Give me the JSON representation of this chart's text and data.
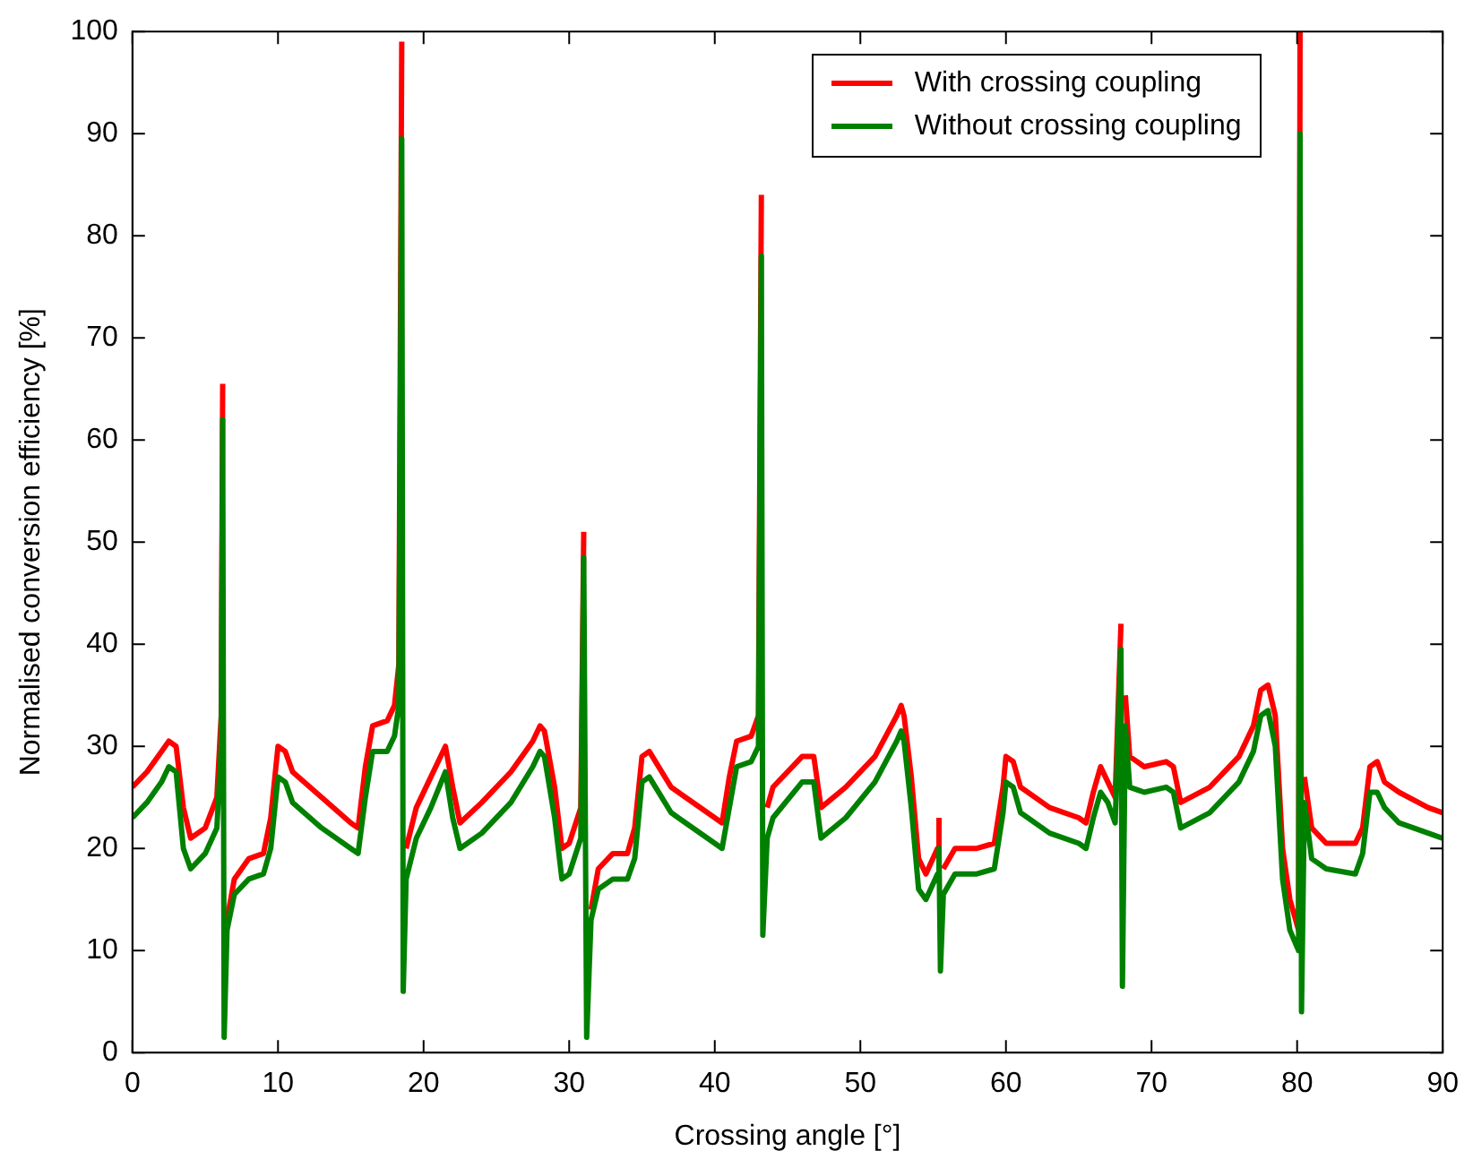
{
  "chart_data": {
    "type": "line",
    "xlabel": "Crossing angle [°]",
    "ylabel": "Normalised conversion efficiency [%]",
    "x": [
      0,
      1,
      2,
      2.5,
      3,
      3.5,
      4,
      5,
      5.8,
      6.1,
      6.2,
      6.3,
      6.5,
      7,
      8,
      9,
      9.5,
      10,
      10.5,
      11,
      13,
      15,
      15.5,
      16,
      16.5,
      17.5,
      18,
      18.3,
      18.5,
      18.6,
      18.8,
      19.5,
      20.5,
      21.5,
      22,
      22.5,
      24,
      26,
      27.5,
      28,
      28.3,
      29,
      29.5,
      30,
      30.8,
      31,
      31.2,
      31.5,
      32,
      33,
      34,
      34.5,
      35,
      35.5,
      37,
      38,
      40,
      40.5,
      41,
      41.5,
      42.5,
      43,
      43.2,
      43.3,
      43.6,
      44,
      46,
      46.8,
      47.3,
      49,
      51,
      52.5,
      52.8,
      53,
      53.5,
      54,
      54.5,
      55.3,
      55.4,
      55.5,
      55.7,
      56.5,
      58,
      59.2,
      59.8,
      60,
      60.5,
      61,
      63,
      65,
      65.5,
      66,
      66.5,
      67,
      67.5,
      67.9,
      68,
      68.2,
      68.5,
      69.5,
      71,
      71.5,
      72,
      74,
      76,
      77,
      77.5,
      78,
      78.5,
      79,
      79.5,
      80.1,
      80.2,
      80.3,
      80.5,
      81,
      82,
      84,
      84.5,
      85,
      85.5,
      86,
      87,
      89,
      90
    ],
    "series": [
      {
        "name": "With crossing coupling",
        "color": "#ff0000",
        "values": [
          26,
          27.5,
          29.5,
          30.5,
          30,
          24,
          21,
          22,
          25,
          33,
          65.5,
          null,
          13,
          17,
          19,
          19.5,
          23,
          30,
          29.5,
          27.5,
          25,
          22.5,
          22,
          28,
          32,
          32.5,
          34,
          38,
          99,
          null,
          20,
          24,
          27,
          30,
          26,
          22.5,
          24.5,
          27.5,
          30.5,
          32,
          31.5,
          26,
          20,
          20.5,
          24,
          51,
          null,
          14,
          18,
          19.5,
          19.5,
          22,
          29,
          29.5,
          26,
          25,
          23,
          22.5,
          27,
          30.5,
          31,
          33,
          84,
          null,
          24,
          26,
          29,
          29,
          24,
          26,
          29,
          33,
          34,
          33,
          27,
          19,
          17.5,
          20,
          23,
          null,
          18,
          20,
          20,
          20.5,
          26,
          29,
          28.5,
          26,
          24,
          23,
          22.5,
          25.5,
          28,
          26.5,
          25,
          42,
          null,
          35,
          29,
          28,
          28.5,
          28,
          24.5,
          26,
          29,
          32,
          35.5,
          36,
          33,
          20,
          15,
          12,
          100,
          null,
          27,
          22,
          20.5,
          20.5,
          22,
          28,
          28.5,
          26.5,
          25.5,
          24,
          23.5
        ]
      },
      {
        "name": "Without crossing coupling",
        "color": "#008000",
        "values": [
          23,
          24.5,
          26.5,
          28,
          27.5,
          20,
          18,
          19.5,
          22,
          30,
          62,
          1.5,
          12,
          15.5,
          17,
          17.5,
          20,
          27,
          26.5,
          24.5,
          22,
          20,
          19.5,
          25,
          29.5,
          29.5,
          31,
          34,
          89.5,
          6,
          17,
          21,
          24,
          27.5,
          23,
          20,
          21.5,
          24.5,
          28,
          29.5,
          29,
          23,
          17,
          17.5,
          21,
          48.5,
          1.5,
          13,
          16,
          17,
          17,
          19,
          26.5,
          27,
          23.5,
          22.5,
          20.5,
          20,
          24,
          28,
          28.5,
          30,
          78,
          11.5,
          21,
          23,
          26.5,
          26.5,
          21,
          23,
          26.5,
          30.5,
          31.5,
          30.5,
          24,
          16,
          15,
          17.5,
          20,
          8,
          15.5,
          17.5,
          17.5,
          18,
          23.5,
          26.5,
          26,
          23.5,
          21.5,
          20.5,
          20,
          23,
          25.5,
          24.5,
          22.5,
          39.5,
          6.5,
          32,
          26,
          25.5,
          26,
          25.5,
          22,
          23.5,
          26.5,
          29.5,
          33,
          33.5,
          30,
          17,
          12,
          10,
          90,
          4,
          24.5,
          19,
          18,
          17.5,
          19.5,
          25.5,
          25.5,
          24,
          22.5,
          21.5,
          21
        ]
      }
    ],
    "xlim": [
      0,
      90
    ],
    "xticks": [
      0,
      10,
      20,
      30,
      40,
      50,
      60,
      70,
      80,
      90
    ],
    "ylim": [
      0,
      100
    ],
    "yticks": [
      0,
      10,
      20,
      30,
      40,
      50,
      60,
      70,
      80,
      90,
      100
    ],
    "grid": false,
    "legend": "top right",
    "marker": "none",
    "line_style": "solid"
  }
}
